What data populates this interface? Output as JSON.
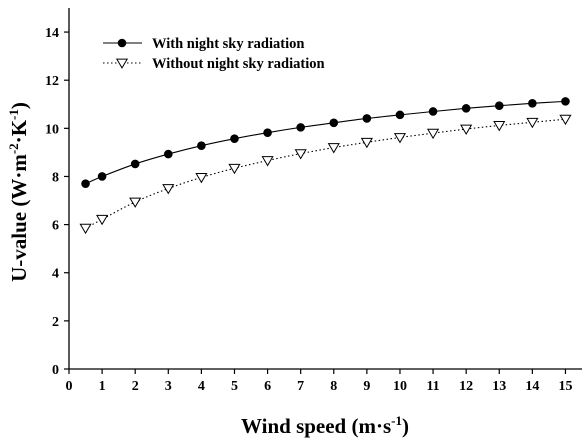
{
  "chart_data": {
    "type": "line",
    "xlabel": {
      "base": "Wind speed (m·s",
      "sup": "-1",
      "end": ")"
    },
    "ylabel": {
      "base": "U-value (W·m",
      "sup1": "-2",
      "mid": "·K",
      "sup2": "-1",
      "end": ")"
    },
    "xlim": [
      0,
      15.5
    ],
    "ylim": [
      0,
      15
    ],
    "xticks": [
      0,
      1,
      2,
      3,
      4,
      5,
      6,
      7,
      8,
      9,
      10,
      11,
      12,
      13,
      14,
      15
    ],
    "yticks": [
      0,
      2,
      4,
      6,
      8,
      10,
      12,
      14
    ],
    "grid": false,
    "legend_position": "top-left",
    "series": [
      {
        "name": "With night sky radiation",
        "marker": "filled-circle",
        "line_style": "solid",
        "color": "#000000",
        "x": [
          0.5,
          1,
          2,
          3,
          4,
          5,
          6,
          7,
          8,
          9,
          10,
          11,
          12,
          13,
          14,
          15
        ],
        "y": [
          7.7,
          8.0,
          8.52,
          8.93,
          9.28,
          9.57,
          9.82,
          10.04,
          10.23,
          10.41,
          10.56,
          10.7,
          10.83,
          10.94,
          11.04,
          11.12
        ]
      },
      {
        "name": "Without night sky radiation",
        "marker": "open-triangle-down",
        "line_style": "dotted",
        "color": "#000000",
        "x": [
          0.5,
          1,
          2,
          3,
          4,
          5,
          6,
          7,
          8,
          9,
          10,
          11,
          12,
          13,
          14,
          15
        ],
        "y": [
          5.85,
          6.22,
          6.94,
          7.5,
          7.96,
          8.34,
          8.66,
          8.95,
          9.2,
          9.42,
          9.62,
          9.8,
          9.97,
          10.12,
          10.25,
          10.38
        ]
      }
    ]
  }
}
